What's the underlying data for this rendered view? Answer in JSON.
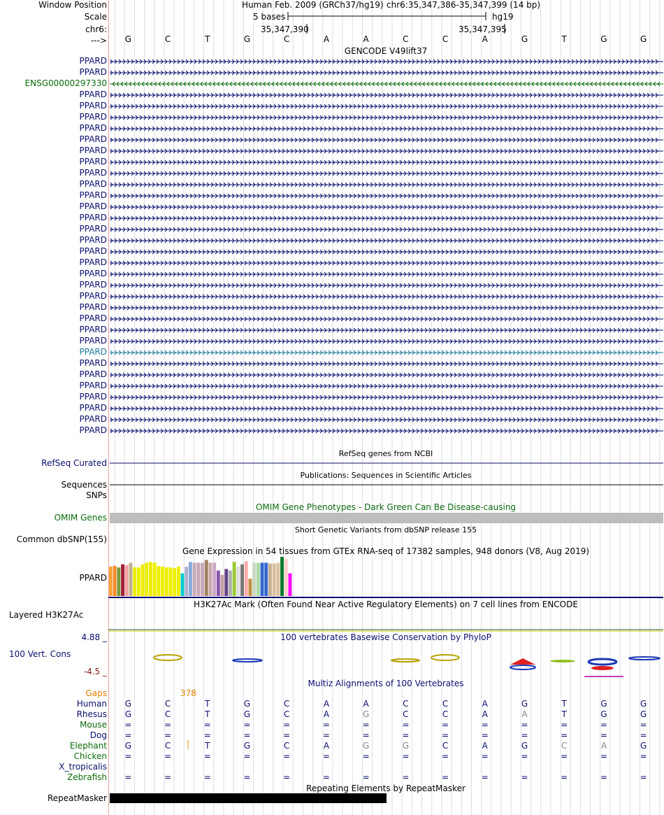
{
  "header": {
    "window_position_label": "Window Position",
    "scale_label": "Scale",
    "chr_label": "chr6:",
    "strand_label": "--->",
    "assembly": "Human Feb. 2009 (GRCh37/hg19)",
    "position": "chr6:35,347,386-35,347,399 (14 bp)",
    "scale_text": "5 bases",
    "scale_db": "hg19",
    "coord1": "35,347,390",
    "coord2": "35,347,395",
    "bases": [
      "G",
      "C",
      "T",
      "G",
      "C",
      "A",
      "A",
      "C",
      "C",
      "A",
      "G",
      "T",
      "G",
      "G"
    ]
  },
  "gencode": {
    "title": "GENCODE V49lift37",
    "rows": [
      {
        "label": "PPARD",
        "color": "#0a0f6e",
        "strand": "+"
      },
      {
        "label": "PPARD",
        "color": "#0a0f6e",
        "strand": "+"
      },
      {
        "label": "ENSG00000297330",
        "color": "#0b6b0b",
        "strand": "-"
      },
      {
        "label": "PPARD",
        "color": "#0a0f6e",
        "strand": "+"
      },
      {
        "label": "PPARD",
        "color": "#0a0f6e",
        "strand": "+"
      },
      {
        "label": "PPARD",
        "color": "#0a0f6e",
        "strand": "+"
      },
      {
        "label": "PPARD",
        "color": "#0a0f6e",
        "strand": "+"
      },
      {
        "label": "PPARD",
        "color": "#0a0f6e",
        "strand": "+"
      },
      {
        "label": "PPARD",
        "color": "#0a0f6e",
        "strand": "+"
      },
      {
        "label": "PPARD",
        "color": "#0a0f6e",
        "strand": "+"
      },
      {
        "label": "PPARD",
        "color": "#0a0f6e",
        "strand": "+"
      },
      {
        "label": "PPARD",
        "color": "#0a0f6e",
        "strand": "+"
      },
      {
        "label": "PPARD",
        "color": "#0a0f6e",
        "strand": "+"
      },
      {
        "label": "PPARD",
        "color": "#0a0f6e",
        "strand": "+"
      },
      {
        "label": "PPARD",
        "color": "#0a0f6e",
        "strand": "+"
      },
      {
        "label": "PPARD",
        "color": "#0a0f6e",
        "strand": "+"
      },
      {
        "label": "PPARD",
        "color": "#0a0f6e",
        "strand": "+"
      },
      {
        "label": "PPARD",
        "color": "#0a0f6e",
        "strand": "+"
      },
      {
        "label": "PPARD",
        "color": "#0a0f6e",
        "strand": "+"
      },
      {
        "label": "PPARD",
        "color": "#0a0f6e",
        "strand": "+"
      },
      {
        "label": "PPARD",
        "color": "#0a0f6e",
        "strand": "+"
      },
      {
        "label": "PPARD",
        "color": "#0a0f6e",
        "strand": "+"
      },
      {
        "label": "PPARD",
        "color": "#0a0f6e",
        "strand": "+"
      },
      {
        "label": "PPARD",
        "color": "#0a0f6e",
        "strand": "+"
      },
      {
        "label": "PPARD",
        "color": "#0a0f6e",
        "strand": "+"
      },
      {
        "label": "PPARD",
        "color": "#0a0f6e",
        "strand": "+"
      },
      {
        "label": "PPARD",
        "color": "#1a7a9a",
        "strand": "+"
      },
      {
        "label": "PPARD",
        "color": "#0a0f6e",
        "strand": "+"
      },
      {
        "label": "PPARD",
        "color": "#0a0f6e",
        "strand": "+"
      },
      {
        "label": "PPARD",
        "color": "#0a0f6e",
        "strand": "+"
      },
      {
        "label": "PPARD",
        "color": "#0a0f6e",
        "strand": "+"
      },
      {
        "label": "PPARD",
        "color": "#0a0f6e",
        "strand": "+"
      },
      {
        "label": "PPARD",
        "color": "#0a0f6e",
        "strand": "+"
      },
      {
        "label": "PPARD",
        "color": "#0a0f6e",
        "strand": "+"
      }
    ]
  },
  "refseq": {
    "title": "RefSeq genes from NCBI",
    "label": "RefSeq Curated"
  },
  "publications": {
    "title": "Publications: Sequences in Scientific Articles",
    "label": "Sequences"
  },
  "snps": {
    "label": "SNPs"
  },
  "omim": {
    "title": "OMIM Gene Phenotypes - Dark Green Can Be Disease-causing",
    "label": "OMIM Genes"
  },
  "dbsnp": {
    "title": "Short Genetic Variants from dbSNP release 155",
    "label": "Common dbSNP(155)"
  },
  "gtex": {
    "title": "Gene Expression in 54 tissues from GTEx RNA-seq of 17382 samples, 948 donors (V8, Aug 2019)",
    "label": "PPARD",
    "bars": [
      {
        "c": "#f6a23c",
        "v": 0.75
      },
      {
        "c": "#f08c2e",
        "v": 0.77
      },
      {
        "c": "#7a9a3a",
        "v": 0.73
      },
      {
        "c": "#a01f3a",
        "v": 0.81
      },
      {
        "c": "#f2a0a0",
        "v": 0.79
      },
      {
        "c": "#c0b090",
        "v": 0.85
      },
      {
        "c": "#eeee00",
        "v": 0.73
      },
      {
        "c": "#eeee00",
        "v": 0.73
      },
      {
        "c": "#eeee00",
        "v": 0.81
      },
      {
        "c": "#eeee00",
        "v": 0.85
      },
      {
        "c": "#eeee00",
        "v": 0.87
      },
      {
        "c": "#eeee00",
        "v": 0.85
      },
      {
        "c": "#eeee00",
        "v": 0.77
      },
      {
        "c": "#eeee00",
        "v": 0.75
      },
      {
        "c": "#eeee00",
        "v": 0.73
      },
      {
        "c": "#eeee00",
        "v": 0.73
      },
      {
        "c": "#eeee00",
        "v": 0.71
      },
      {
        "c": "#eeee00",
        "v": 0.75
      },
      {
        "c": "#00cccc",
        "v": 0.58
      },
      {
        "c": "#b0b0d0",
        "v": 0.75
      },
      {
        "c": "#88aadd",
        "v": 0.87
      },
      {
        "c": "#c8a8b8",
        "v": 0.85
      },
      {
        "c": "#c8a8b8",
        "v": 0.85
      },
      {
        "c": "#c8a8b8",
        "v": 0.85
      },
      {
        "c": "#a08060",
        "v": 0.92
      },
      {
        "c": "#c8a8a8",
        "v": 0.85
      },
      {
        "c": "#c8a8c8",
        "v": 0.85
      },
      {
        "c": "#8855aa",
        "v": 0.65
      },
      {
        "c": "#c0a0a0",
        "v": 0.54
      },
      {
        "c": "#664488",
        "v": 0.69
      },
      {
        "c": "#b0b0b0",
        "v": 0.65
      },
      {
        "c": "#99cc33",
        "v": 0.87
      },
      {
        "c": "#dddddd",
        "v": 0.75
      },
      {
        "c": "#777777",
        "v": 0.81
      },
      {
        "c": "#ffaaaa",
        "v": 0.89
      },
      {
        "c": "#c09040",
        "v": 0.44
      },
      {
        "c": "#c8d8c0",
        "v": 0.85
      },
      {
        "c": "#a8d8a8",
        "v": 0.85
      },
      {
        "c": "#3366cc",
        "v": 0.85
      },
      {
        "c": "#3366cc",
        "v": 0.85
      },
      {
        "c": "#c8b090",
        "v": 0.83
      },
      {
        "c": "#d8c0a0",
        "v": 0.83
      },
      {
        "c": "#d8c0a0",
        "v": 0.85
      },
      {
        "c": "#0a7a2a",
        "v": 1.0
      },
      {
        "c": "#ffcccc",
        "v": 0.94
      },
      {
        "c": "#ff00ff",
        "v": 0.58
      }
    ]
  },
  "h3k27": {
    "title": "H3K27Ac Mark (Often Found Near Active Regulatory Elements) on 7 cell lines from ENCODE",
    "label": "Layered H3K27Ac"
  },
  "phylop": {
    "title": "100 vertebrates Basewise Conservation by PhyloP",
    "label": "100 Vert. Cons",
    "max": "4.88 _",
    "min": "-4.5 _"
  },
  "multiz": {
    "title": "Multiz Alignments of 100 Vertebrates",
    "gaps_label": "Gaps",
    "gap_count": "378",
    "species": [
      {
        "name": "Human",
        "color": "#0a0f6e",
        "bases": [
          "G",
          "C",
          "T",
          "G",
          "C",
          "A",
          "A",
          "C",
          "C",
          "A",
          "G",
          "T",
          "G",
          "G"
        ]
      },
      {
        "name": "Rhesus",
        "color": "#0a0f6e",
        "bases": [
          "G",
          "C",
          "T",
          "G",
          "C",
          "A",
          "G",
          "C",
          "C",
          "A",
          "A",
          "T",
          "G",
          "G"
        ]
      },
      {
        "name": "Mouse",
        "color": "#0b6b0b",
        "bases": [
          "=",
          "=",
          "=",
          "=",
          "=",
          "=",
          "=",
          "=",
          "=",
          "=",
          "=",
          "=",
          "=",
          "="
        ]
      },
      {
        "name": "Dog",
        "color": "#0a0f6e",
        "bases": [
          "=",
          "=",
          "=",
          "=",
          "=",
          "=",
          "=",
          "=",
          "=",
          "=",
          "=",
          "=",
          "=",
          "="
        ]
      },
      {
        "name": "Elephant",
        "color": "#0b6b0b",
        "bases": [
          "G",
          "C",
          "T",
          "G",
          "C",
          "A",
          "G",
          "G",
          "C",
          "A",
          "G",
          "C",
          "A",
          "G"
        ]
      },
      {
        "name": "Chicken",
        "color": "#0b6b0b",
        "bases": [
          "=",
          "=",
          "=",
          "=",
          "=",
          "=",
          "=",
          "=",
          "=",
          "=",
          "=",
          "=",
          "=",
          "="
        ]
      },
      {
        "name": "X_tropicalis",
        "color": "#0a0f6e",
        "bases": [
          "",
          "",
          "",
          "",
          "",
          "",
          "",
          "",
          "",
          "",
          "",
          "",
          "",
          ""
        ]
      },
      {
        "name": "Zebrafish",
        "color": "#0b6b0b",
        "bases": [
          "=",
          "=",
          "=",
          "=",
          "=",
          "=",
          "=",
          "=",
          "=",
          "=",
          "=",
          "=",
          "=",
          "="
        ]
      }
    ]
  },
  "repeatmasker": {
    "title": "Repeating Elements by RepeatMasker",
    "label": "RepeatMasker"
  }
}
